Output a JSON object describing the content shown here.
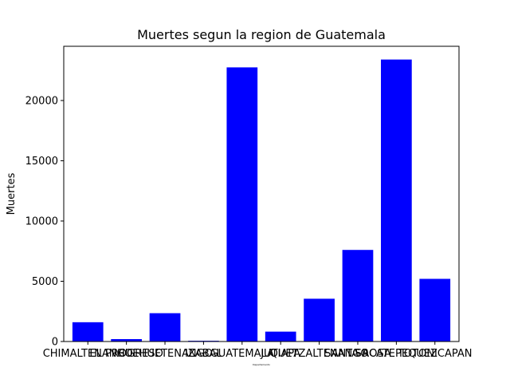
{
  "chart_data": {
    "type": "bar",
    "title": "Muertes segun la region de Guatemala",
    "xlabel": "Departamento",
    "ylabel": "Muertes",
    "categories": [
      "CHIMALTENANGO",
      "EL PROGRESO",
      "HUEHUETENANGO",
      "IZABAL",
      "GUATEMALA",
      "JUTIAPA",
      "QUETZALTENANGO",
      "SANTA ROSA",
      "SACATEPEQUEZ",
      "TOTONICAPAN"
    ],
    "tick_labels": [
      "CHIMALTENANGO",
      "EL PROGRESO",
      "HUEHUETENANGO",
      "IZABAL",
      "GUATEMALA",
      "JUTIAPA",
      "QUETZALTENANGO",
      "SANTA ROSA",
      "SACATEPEQUEZ",
      "TOTONICAPAN"
    ],
    "values": [
      1600,
      200,
      2350,
      60,
      22750,
      820,
      3550,
      7600,
      23400,
      5200
    ],
    "ylim": [
      0,
      24500
    ],
    "yticks": [
      0,
      5000,
      10000,
      15000,
      20000
    ],
    "bar_color": "#0000ff",
    "grid": false,
    "legend": "none"
  }
}
